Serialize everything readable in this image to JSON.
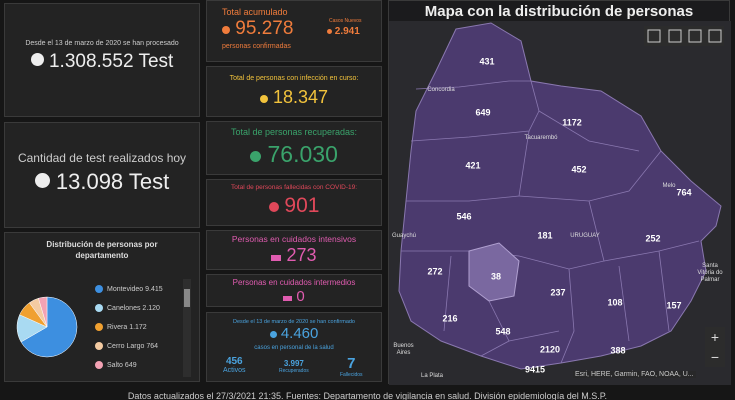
{
  "tests": {
    "since": "Desde el 13 de marzo de 2020 se han procesado",
    "total": "1.308.552 Test"
  },
  "today": {
    "label": "Cantidad de test realizados hoy",
    "total": "13.098 Test"
  },
  "distribution": {
    "title": "Distribución de personas por departamento",
    "items": [
      {
        "name": "Montevideo",
        "value": "9.415",
        "color": "#3d8fe0"
      },
      {
        "name": "Canelones",
        "value": "2.120",
        "color": "#a9daf2"
      },
      {
        "name": "Rivera",
        "value": "1.172",
        "color": "#f0a030"
      },
      {
        "name": "Cerro Largo",
        "value": "764",
        "color": "#f4cba2"
      },
      {
        "name": "Salto",
        "value": "649",
        "color": "#f3a2b4"
      }
    ]
  },
  "accumulated": {
    "label": "Total acumulado",
    "value": "95.278",
    "sub": "personas confirmadas",
    "new_label": "Casos Nuevos",
    "new_value": "2.941"
  },
  "active": {
    "label": "Total de personas con infección en curso:",
    "value": "18.347"
  },
  "recovered": {
    "label": "Total de personas recuperadas:",
    "value": "76.030"
  },
  "deceased": {
    "label": "Total de personas fallecidas con COVID-19:",
    "value": "901"
  },
  "icu": {
    "label": "Personas en cuidados intensivos",
    "value": "273"
  },
  "intermediate": {
    "label": "Personas en cuidados intermedios",
    "value": "0"
  },
  "health_staff": {
    "since": "Desde el 13 de marzo de 2020 se han confirmado",
    "value": "4.460",
    "sub": "casos en personal de la salud",
    "active": {
      "value": "456",
      "label": "Activos"
    },
    "recovered": {
      "value": "3.997",
      "label": "Recuperados"
    },
    "deceased": {
      "value": "7",
      "label": "Fallecidos"
    }
  },
  "map": {
    "title": "Mapa con la distribución de personas",
    "department_counts": [
      "431",
      "649",
      "1172",
      "421",
      "452",
      "764",
      "546",
      "181",
      "252",
      "272",
      "38",
      "237",
      "108",
      "157",
      "216",
      "548",
      "2120",
      "388",
      "9415"
    ],
    "places": [
      "Concordia",
      "Tacuarembó",
      "Melo",
      "Guaychú",
      "URUGUAY",
      "Buenos Aires",
      "La Plata",
      "Santa Vitória do Palmar"
    ],
    "attribution": "Esri, HERE, Garmin, FAO, NOAA, U...",
    "zoom_in": "+",
    "zoom_out": "−"
  },
  "footer": "Datos actualizados el 27/3/2021 21:35. Fuentes: Departamento de vigilancia en salud. División epidemiología del M.S.P."
}
